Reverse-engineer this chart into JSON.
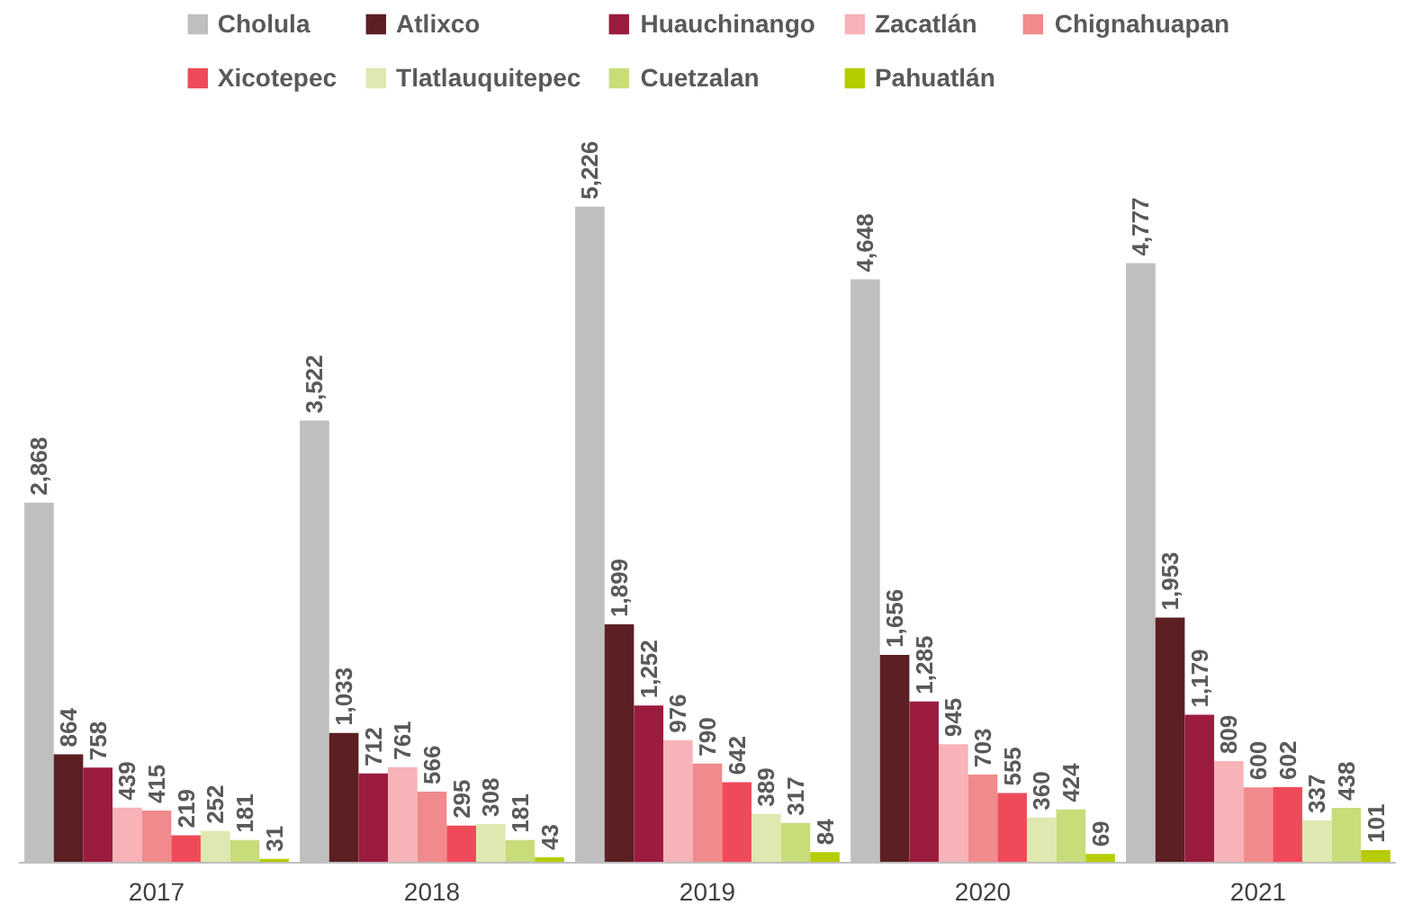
{
  "chart_data": {
    "type": "bar",
    "categories": [
      "2017",
      "2018",
      "2019",
      "2020",
      "2021"
    ],
    "series": [
      {
        "name": "Cholula",
        "color": "#bfbfbf",
        "values": [
          2868,
          3522,
          5226,
          4648,
          4777
        ],
        "value_labels": [
          "2,868",
          "3,522",
          "5,226",
          "4,648",
          "4,777"
        ]
      },
      {
        "name": "Atlixco",
        "color": "#5c1f24",
        "values": [
          864,
          1033,
          1899,
          1656,
          1953
        ],
        "value_labels": [
          "864",
          "1,033",
          "1,899",
          "1,656",
          "1,953"
        ]
      },
      {
        "name": "Huauchinango",
        "color": "#9b1c3f",
        "values": [
          758,
          712,
          1252,
          1285,
          1179
        ],
        "value_labels": [
          "758",
          "712",
          "1,252",
          "1,285",
          "1,179"
        ]
      },
      {
        "name": "Zacatlán",
        "color": "#f7b3b8",
        "values": [
          439,
          761,
          976,
          945,
          809
        ],
        "value_labels": [
          "439",
          "761",
          "976",
          "945",
          "809"
        ]
      },
      {
        "name": "Chignahuapan",
        "color": "#f08a8c",
        "values": [
          415,
          566,
          790,
          703,
          600
        ],
        "value_labels": [
          "415",
          "566",
          "790",
          "703",
          "600"
        ]
      },
      {
        "name": "Xicotepec",
        "color": "#ef4a5a",
        "values": [
          219,
          295,
          642,
          555,
          602
        ],
        "value_labels": [
          "219",
          "295",
          "642",
          "555",
          "602"
        ]
      },
      {
        "name": "Tlatlauquitepec",
        "color": "#dfe8b0",
        "values": [
          252,
          308,
          389,
          360,
          337
        ],
        "value_labels": [
          "252",
          "308",
          "389",
          "360",
          "337"
        ]
      },
      {
        "name": "Cuetzalan",
        "color": "#c8dc7a",
        "values": [
          181,
          181,
          317,
          424,
          438
        ],
        "value_labels": [
          "181",
          "181",
          "317",
          "424",
          "438"
        ]
      },
      {
        "name": "Pahuatlán",
        "color": "#b5cc00",
        "values": [
          31,
          43,
          84,
          69,
          101
        ],
        "value_labels": [
          "31",
          "43",
          "84",
          "69",
          "101"
        ]
      }
    ],
    "legend": "top"
  }
}
